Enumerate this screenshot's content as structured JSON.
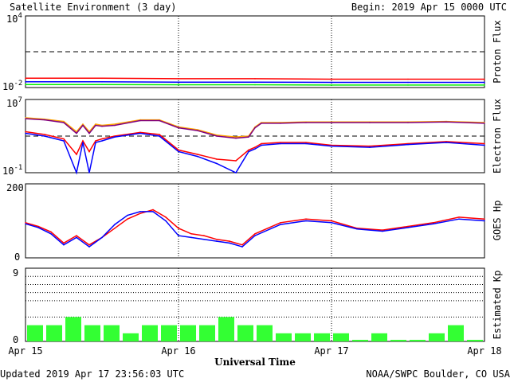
{
  "header": {
    "title": "Satellite Environment (3 day)",
    "begin": "Begin:  2019 Apr 15 0000 UTC"
  },
  "footer": {
    "updated": "Updated 2019 Apr 17 23:56:03 UTC",
    "source": "NOAA/SWPC Boulder, CO USA"
  },
  "colors": {
    "red": "#ff0000",
    "blue": "#0000ff",
    "green": "#00ee00",
    "orange": "#ffa500",
    "purple": "#800080",
    "kp_bar": "#33ff33"
  },
  "chart_data": [
    {
      "type": "line",
      "panel": "proton",
      "ylabel": "Proton Flux",
      "yscale": "log",
      "ytick_labels": [
        {
          "base": "10",
          "exp": "4"
        },
        {
          "base": "10",
          "exp": "-2"
        }
      ],
      "ylim": [
        0.01,
        10000
      ],
      "threshold": 10,
      "x": [
        0,
        12,
        24,
        36,
        48,
        60,
        72
      ],
      "series": [
        {
          "color": "red",
          "values": [
            0.06,
            0.06,
            0.055,
            0.055,
            0.05,
            0.05,
            0.05
          ]
        },
        {
          "color": "blue",
          "values": [
            0.03,
            0.03,
            0.028,
            0.028,
            0.027,
            0.027,
            0.027
          ]
        },
        {
          "color": "green",
          "values": [
            0.018,
            0.018,
            0.017,
            0.017,
            0.016,
            0.016,
            0.016
          ]
        }
      ]
    },
    {
      "type": "line",
      "panel": "electron",
      "ylabel": "Electron Flux",
      "yscale": "log",
      "ytick_labels": [
        {
          "base": "10",
          "exp": "7"
        },
        {
          "base": "10",
          "exp": "-1"
        }
      ],
      "ylim": [
        0.1,
        10000000
      ],
      "threshold": 1000,
      "x": [
        0,
        3,
        6,
        8,
        9,
        10,
        11,
        12,
        14,
        18,
        21,
        24,
        27,
        30,
        33,
        35,
        36,
        37,
        40,
        44,
        48,
        54,
        60,
        66,
        72
      ],
      "series": [
        {
          "color": "orange",
          "values": [
            100000,
            70000,
            40000,
            3000,
            20000,
            3000,
            20000,
            15000,
            20000,
            60000,
            60000,
            10000,
            5000,
            1300,
            800,
            1000,
            10000,
            30000,
            30000,
            35000,
            35000,
            35000,
            35000,
            40000,
            30000
          ]
        },
        {
          "color": "purple",
          "values": [
            80000,
            60000,
            30000,
            2000,
            15000,
            2000,
            15000,
            12000,
            15000,
            50000,
            50000,
            8000,
            4000,
            1000,
            600,
            800,
            8000,
            25000,
            25000,
            30000,
            30000,
            30000,
            30000,
            35000,
            25000
          ]
        },
        {
          "color": "red",
          "values": [
            3000,
            1500,
            500,
            10,
            300,
            20,
            300,
            500,
            1000,
            2500,
            1500,
            30,
            10,
            3,
            2,
            30,
            60,
            150,
            200,
            200,
            100,
            80,
            150,
            250,
            150
          ]
        },
        {
          "color": "blue",
          "values": [
            2000,
            1000,
            300,
            0.1,
            200,
            0.1,
            200,
            300,
            800,
            2000,
            1000,
            20,
            6,
            1,
            0.1,
            20,
            40,
            100,
            150,
            150,
            80,
            60,
            120,
            200,
            100
          ]
        }
      ]
    },
    {
      "type": "line",
      "panel": "hp",
      "ylabel": "GOES Hp",
      "yscale": "linear",
      "ytick_labels": [
        "200",
        "0"
      ],
      "ylim": [
        0,
        200
      ],
      "x": [
        0,
        2,
        4,
        6,
        8,
        10,
        12,
        14,
        16,
        18,
        20,
        22,
        24,
        26,
        28,
        30,
        32,
        34,
        36,
        40,
        44,
        48,
        52,
        56,
        60,
        64,
        68,
        72
      ],
      "series": [
        {
          "color": "red",
          "values": [
            95,
            85,
            70,
            40,
            60,
            35,
            55,
            80,
            105,
            120,
            130,
            110,
            80,
            65,
            60,
            50,
            45,
            35,
            65,
            95,
            105,
            100,
            80,
            75,
            85,
            95,
            110,
            105
          ]
        },
        {
          "color": "blue",
          "values": [
            92,
            82,
            65,
            35,
            55,
            30,
            55,
            90,
            115,
            125,
            125,
            100,
            60,
            55,
            50,
            45,
            40,
            30,
            60,
            90,
            100,
            95,
            78,
            72,
            82,
            92,
            105,
            100
          ]
        }
      ]
    },
    {
      "type": "bar",
      "panel": "kp",
      "ylabel": "Estimated Kp",
      "ylim": [
        0,
        9
      ],
      "ytick_labels": [
        "9",
        "0"
      ],
      "values": [
        2,
        2,
        3,
        2,
        2,
        1,
        2,
        2,
        2,
        2,
        3,
        2,
        2,
        1,
        1,
        1,
        1,
        0.2,
        1,
        0.2,
        0.2,
        1,
        2,
        0.2
      ]
    }
  ],
  "x_axis": {
    "title": "Universal Time",
    "ticks": [
      "Apr 15",
      "Apr 16",
      "Apr 17",
      "Apr 18"
    ]
  }
}
